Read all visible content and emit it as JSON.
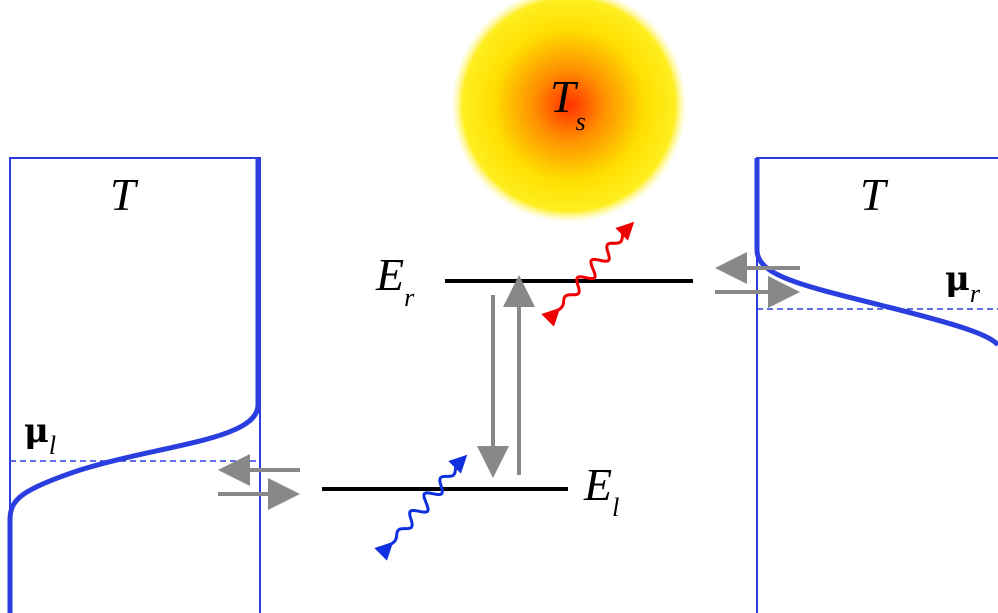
{
  "sun": {
    "symbol": "T",
    "subscript": "s"
  },
  "left_reservoir": {
    "temperature": "T",
    "chemical_potential": {
      "symbol": "μ",
      "subscript": "l"
    }
  },
  "right_reservoir": {
    "temperature": "T",
    "chemical_potential": {
      "symbol": "μ",
      "subscript": "r"
    }
  },
  "levels": [
    {
      "symbol": "E",
      "subscript": "r"
    },
    {
      "symbol": "E",
      "subscript": "l"
    }
  ]
}
